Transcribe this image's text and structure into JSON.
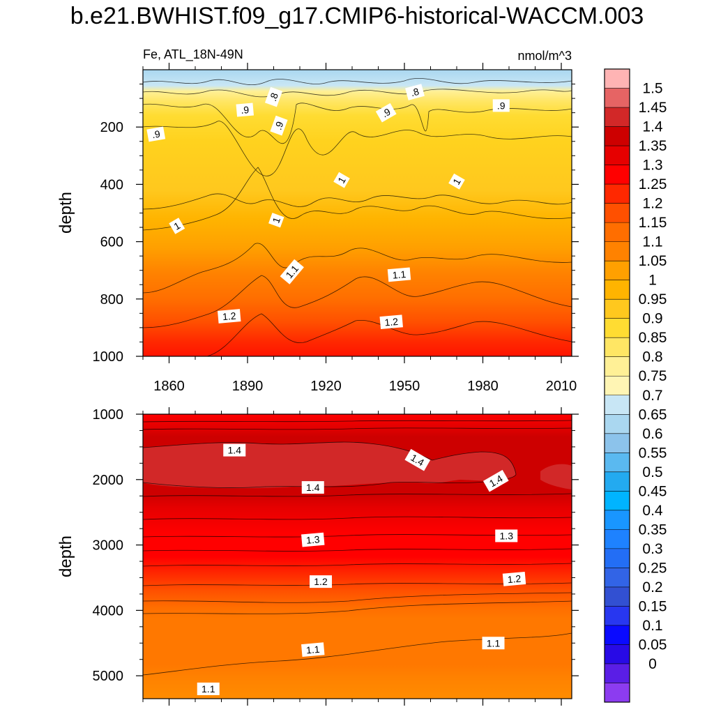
{
  "title": "b.e21.BWHIST.f09_g17.CMIP6-historical-WACCM.003",
  "chart_data": {
    "type": "heatmap",
    "variable_label": "Fe, ATL_18N-49N",
    "units": "nmol/m^3",
    "ylabel": "depth",
    "x_ticks": [
      1860,
      1890,
      1920,
      1950,
      1980,
      2010
    ],
    "xlim": [
      1850,
      2014
    ],
    "upper_panel": {
      "ylim": [
        0,
        1000
      ],
      "y_ticks": [
        200,
        400,
        600,
        800,
        1000
      ],
      "contour_labels": [
        {
          "text": ".9",
          "x": 1855,
          "y": 225,
          "rot": -10
        },
        {
          "text": ".9",
          "x": 1889,
          "y": 140,
          "rot": -5
        },
        {
          "text": ".8",
          "x": 1900,
          "y": 95,
          "rot": -70
        },
        {
          "text": ".9",
          "x": 1902,
          "y": 195,
          "rot": -70
        },
        {
          "text": ".9",
          "x": 1943,
          "y": 150,
          "rot": -30
        },
        {
          "text": ".8",
          "x": 1954,
          "y": 78,
          "rot": -15
        },
        {
          "text": ".9",
          "x": 1987,
          "y": 125,
          "rot": 0
        },
        {
          "text": "1",
          "x": 1863,
          "y": 545,
          "rot": -30
        },
        {
          "text": "1",
          "x": 1926,
          "y": 385,
          "rot": -60
        },
        {
          "text": "1",
          "x": 1901,
          "y": 525,
          "rot": -70
        },
        {
          "text": "1",
          "x": 1970,
          "y": 390,
          "rot": -60
        },
        {
          "text": "1.1",
          "x": 1907,
          "y": 705,
          "rot": -50
        },
        {
          "text": "1.1",
          "x": 1948,
          "y": 715,
          "rot": -5
        },
        {
          "text": "1.2",
          "x": 1883,
          "y": 860,
          "rot": -5
        },
        {
          "text": "1.2",
          "x": 1945,
          "y": 880,
          "rot": -5
        }
      ]
    },
    "lower_panel": {
      "ylim": [
        1000,
        5350
      ],
      "y_ticks": [
        1000,
        2000,
        3000,
        4000,
        5000
      ],
      "contour_labels": [
        {
          "text": "1.4",
          "x": 1885,
          "y": 1550,
          "rot": 0
        },
        {
          "text": "1.4",
          "x": 1955,
          "y": 1700,
          "rot": 30
        },
        {
          "text": "1.4",
          "x": 1915,
          "y": 2120,
          "rot": 0
        },
        {
          "text": "1.4",
          "x": 1985,
          "y": 2020,
          "rot": -30
        },
        {
          "text": "1.3",
          "x": 1915,
          "y": 2920,
          "rot": -5
        },
        {
          "text": "1.3",
          "x": 1989,
          "y": 2860,
          "rot": 0
        },
        {
          "text": "1.2",
          "x": 1918,
          "y": 3560,
          "rot": 0
        },
        {
          "text": "1.2",
          "x": 1992,
          "y": 3520,
          "rot": -5
        },
        {
          "text": "1.1",
          "x": 1915,
          "y": 4600,
          "rot": -5
        },
        {
          "text": "1.1",
          "x": 1984,
          "y": 4500,
          "rot": 0
        },
        {
          "text": "1.1",
          "x": 1875,
          "y": 5200,
          "rot": 0
        }
      ]
    },
    "colorbar": {
      "levels": [
        "1.5",
        "1.45",
        "1.4",
        "1.35",
        "1.3",
        "1.25",
        "1.2",
        "1.15",
        "1.1",
        "1.05",
        "1",
        "0.95",
        "0.9",
        "0.85",
        "0.8",
        "0.75",
        "0.7",
        "0.65",
        "0.6",
        "0.55",
        "0.5",
        "0.45",
        "0.4",
        "0.35",
        "0.3",
        "0.25",
        "0.2",
        "0.15",
        "0.1",
        "0.05",
        "0"
      ],
      "colors": [
        "#ffb4b4",
        "#e66464",
        "#d22828",
        "#cd0000",
        "#e60000",
        "#ff0000",
        "#ff2800",
        "#ff5000",
        "#ff6e00",
        "#ff8200",
        "#ffa000",
        "#ffb400",
        "#ffc81e",
        "#ffdc32",
        "#ffe664",
        "#fff096",
        "#fff5b4",
        "#c8e6f5",
        "#aad7f0",
        "#8cc3eb",
        "#5ab9f0",
        "#23aaf0",
        "#00b4ff",
        "#1996ff",
        "#1e82ff",
        "#236ef5",
        "#3264e6",
        "#3250d2",
        "#2837f0",
        "#0a0aff",
        "#280ae6",
        "#5a1ee6",
        "#8c3cf0"
      ]
    }
  }
}
